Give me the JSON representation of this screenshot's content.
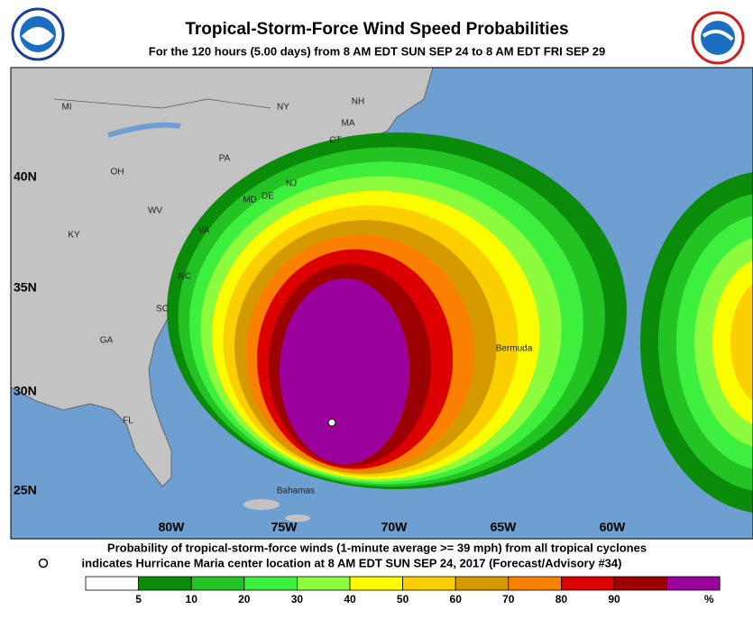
{
  "header": {
    "title": "Tropical-Storm-Force Wind Speed Probabilities",
    "subtitle": "For the 120 hours (5.00 days) from 8 AM EDT SUN SEP 24 to 8 AM EDT FRI SEP 29"
  },
  "map": {
    "lat_labels": [
      "40N",
      "35N",
      "30N",
      "25N"
    ],
    "lon_labels": [
      "80W",
      "75W",
      "70W",
      "65W",
      "60W"
    ],
    "places": [
      "MI",
      "NY",
      "NH",
      "MA",
      "CT",
      "PA",
      "OH",
      "NJ",
      "DE",
      "MD",
      "WV",
      "VA",
      "KY",
      "NC",
      "SC",
      "GA",
      "FL",
      "Bermuda",
      "Bahamas"
    ]
  },
  "footer": {
    "line1": "Probability of tropical-storm-force winds (1-minute average >= 39 mph) from all tropical cyclones",
    "line2": "indicates Hurricane Maria center location at 8 AM EDT SUN SEP 24, 2017 (Forecast/Advisory #34)"
  },
  "legend": {
    "levels": [
      {
        "value": 5,
        "color": "#0a8c0a"
      },
      {
        "value": 10,
        "color": "#22c322"
      },
      {
        "value": 20,
        "color": "#3ef03e"
      },
      {
        "value": 30,
        "color": "#8cfc3c"
      },
      {
        "value": 40,
        "color": "#fcfc00"
      },
      {
        "value": 50,
        "color": "#fcd000"
      },
      {
        "value": 60,
        "color": "#d49a00"
      },
      {
        "value": 70,
        "color": "#fc8000"
      },
      {
        "value": 80,
        "color": "#dc0000"
      },
      {
        "value": 90,
        "color": "#9c0000"
      }
    ],
    "unit": "%",
    "top_color": "#9c009c"
  }
}
